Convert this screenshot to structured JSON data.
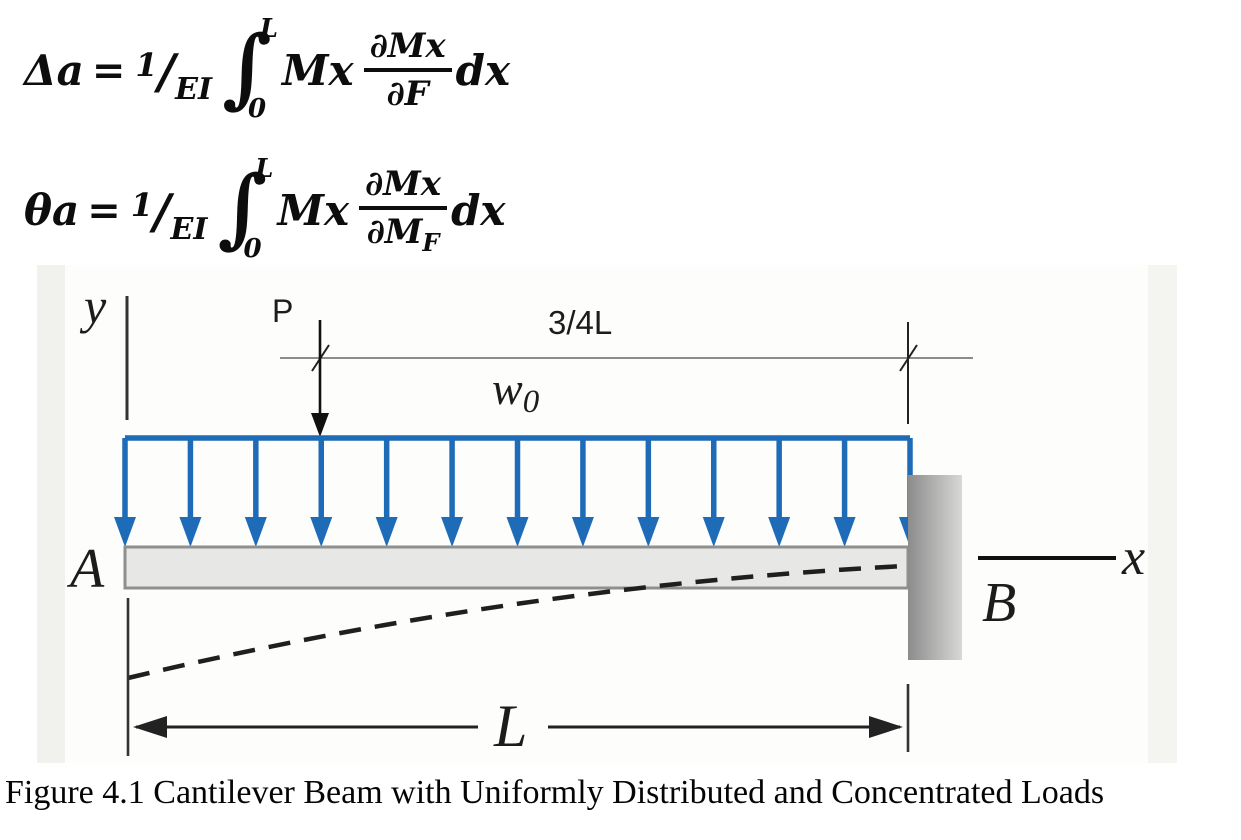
{
  "equations": {
    "eq1": {
      "lhs": "Δa",
      "equals": "=",
      "coef_num": "1",
      "coef_slash": "/",
      "coef_den": "EI",
      "int_glyph": "∫",
      "int_upper": "L",
      "int_lower": "0",
      "integrand": "Mx",
      "frac_num": "∂Mx",
      "frac_den": "∂F",
      "differential": "dx"
    },
    "eq2": {
      "lhs": "θa",
      "equals": "=",
      "coef_num": "1",
      "coef_slash": "/",
      "coef_den": "EI",
      "int_glyph": "∫",
      "int_upper": "L",
      "int_lower": "0",
      "integrand": "Mx",
      "frac_num": "∂Mx",
      "frac_den_main": "∂M",
      "frac_den_sub": "F",
      "differential": "dx"
    }
  },
  "diagram": {
    "labels": {
      "y_axis": "y",
      "point_load": "P",
      "dim_three_quarter": "3/4L",
      "load_intensity_main": "w",
      "load_intensity_sub": "0",
      "end_a": "A",
      "end_b": "B",
      "x_axis": "x",
      "length": "L"
    },
    "distributed_load": {
      "arrow_count": 13,
      "color": "#1e6bb8"
    },
    "colors": {
      "beam_fill": "#e7e7e5",
      "beam_border": "#8f8f8f",
      "wall_dark": "#8c8c8c",
      "wall_light": "#d8d8d6",
      "line_dark": "#222222",
      "dim_line": "#666666",
      "panel_strip": "#f1f1ee"
    }
  },
  "caption": "Figure 4.1 Cantilever Beam with Uniformly Distributed and Concentrated Loads"
}
